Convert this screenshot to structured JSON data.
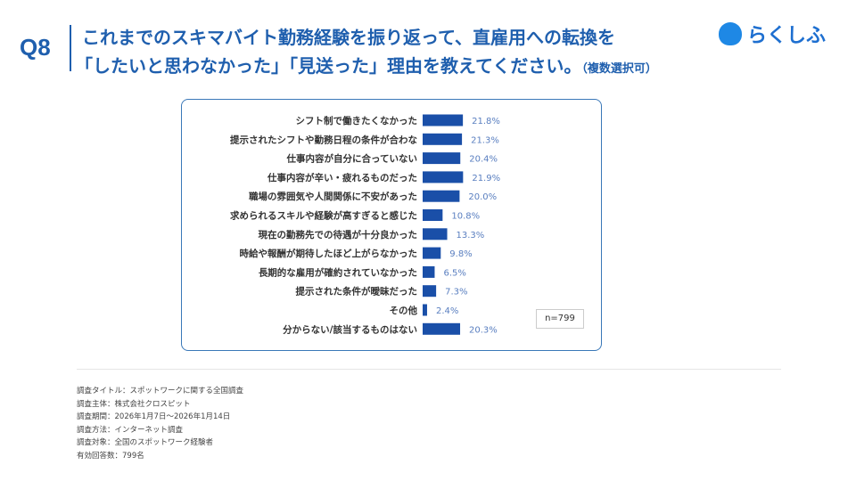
{
  "header": {
    "q_label": "Q8",
    "title_line1": "これまでのスキマバイト勤務経験を振り返って、直雇用への転換を",
    "title_line2": "「したいと思わなかった」「見送った」理由を教えてください。",
    "title_note": "（複数選択可）",
    "logo_text": "らくしふ"
  },
  "chart_data": {
    "type": "bar",
    "orientation": "horizontal",
    "categories": [
      "シフト制で働きたくなかった",
      "提示されたシフトや勤務日程の条件が合わな",
      "仕事内容が自分に合っていない",
      "仕事内容が辛い・疲れるものだった",
      "職場の雰囲気や人間関係に不安があった",
      "求められるスキルや経験が高すぎると感じた",
      "現在の勤務先での待遇が十分良かった",
      "時給や報酬が期待したほど上がらなかった",
      "長期的な雇用が確約されていなかった",
      "提示された条件が曖昧だった",
      "その他",
      "分からない/該当するものはない"
    ],
    "values": [
      21.8,
      21.3,
      20.4,
      21.9,
      20.0,
      10.8,
      13.3,
      9.8,
      6.5,
      7.3,
      2.4,
      20.3
    ],
    "value_labels": [
      "21.8%",
      "21.3%",
      "20.4%",
      "21.9%",
      "20.0%",
      "10.8%",
      "13.3%",
      "9.8%",
      "6.5%",
      "7.3%",
      "2.4%",
      "20.3%"
    ],
    "bar_color": "#1a4fa8",
    "label_color": "#5a7fc0",
    "sample_note": "n=799"
  },
  "notes": [
    "調査タイトル：スポットワークに関する全国調査",
    "調査主体：株式会社クロスピット",
    "調査期間：2026年1月7日〜2026年1月14日",
    "調査方法：インターネット調査",
    "調査対象：全国のスポットワーク経験者",
    "有効回答数：799名"
  ]
}
